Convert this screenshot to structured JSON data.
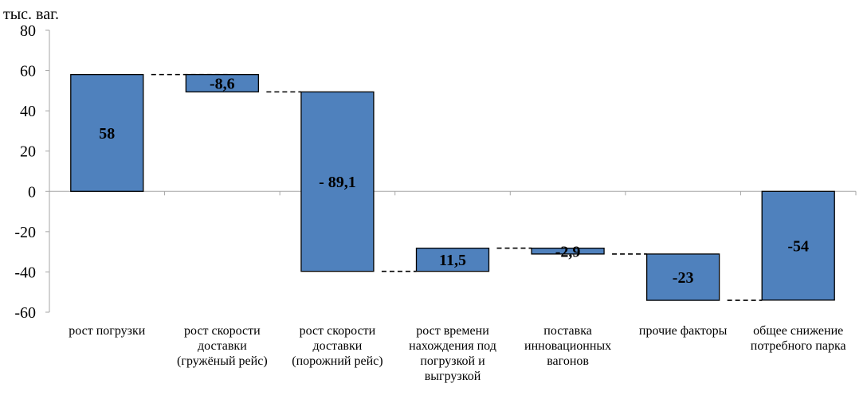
{
  "chart_data": {
    "type": "bar",
    "subtype": "waterfall",
    "unit_label": "тыс. ваг.",
    "ylim": [
      -60,
      80
    ],
    "yticks": [
      80,
      60,
      40,
      20,
      0,
      -20,
      -40,
      -60
    ],
    "grid": false,
    "bar_color": "#4f81bd",
    "categories": [
      [
        "рост погрузки"
      ],
      [
        "рост скорости",
        "доставки",
        "(гружёный рейс)"
      ],
      [
        "рост скорости",
        "доставки",
        "(порожний рейс)"
      ],
      [
        "рост времени",
        "нахождения под",
        "погрузкой и",
        "выгрузкой"
      ],
      [
        "поставка",
        "инновационных",
        "вагонов"
      ],
      [
        "прочие факторы"
      ],
      [
        "общее снижение",
        "потребного парка"
      ]
    ],
    "bars": [
      {
        "start": 0,
        "end": 58,
        "label": "58"
      },
      {
        "start": 58,
        "end": 49.4,
        "label": "-8,6"
      },
      {
        "start": 49.4,
        "end": -39.7,
        "label": "- 89,1"
      },
      {
        "start": -39.7,
        "end": -28.2,
        "label": "11,5"
      },
      {
        "start": -28.2,
        "end": -31.1,
        "label": "-2,9"
      },
      {
        "start": -31.1,
        "end": -54.1,
        "label": "-23"
      },
      {
        "start": 0,
        "end": -54,
        "label": "-54"
      }
    ]
  }
}
